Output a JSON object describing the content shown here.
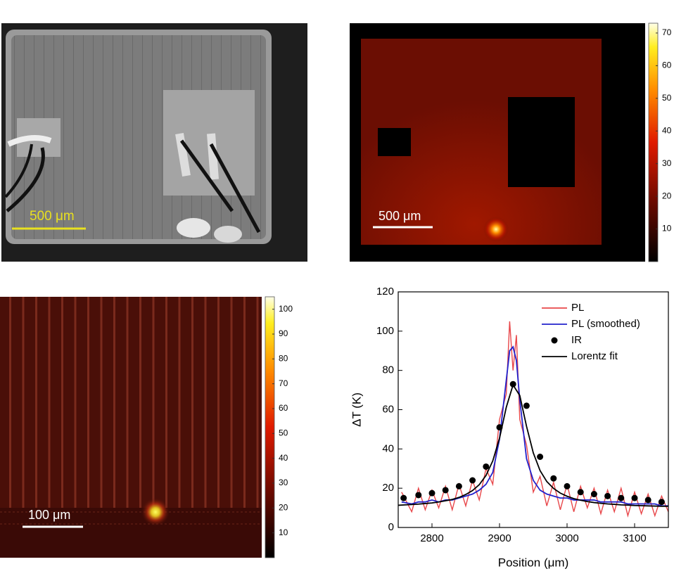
{
  "chart_data": [
    {
      "type": "image",
      "scale_bar": "500 μm"
    },
    {
      "type": "heatmap",
      "scale_bar": "500 μm",
      "clim": [
        0,
        73
      ],
      "cticks": [
        10,
        20,
        30,
        40,
        50,
        60,
        70
      ]
    },
    {
      "type": "heatmap",
      "scale_bar": "100 μm",
      "clim": [
        0,
        105
      ],
      "cticks": [
        10,
        20,
        30,
        40,
        50,
        60,
        70,
        80,
        90,
        100
      ]
    },
    {
      "type": "line",
      "xlabel": "Position (μm)",
      "ylabel": "ΔT (K)",
      "xlim": [
        2750,
        3150
      ],
      "xticks": [
        2800,
        2900,
        3000,
        3100
      ],
      "ylim": [
        0,
        120
      ],
      "yticks": [
        0,
        20,
        40,
        60,
        80,
        100,
        120
      ],
      "legend": "upper right",
      "series": [
        {
          "name": "PL",
          "color": "#e8474a",
          "style": "line",
          "x": [
            2755,
            2770,
            2780,
            2790,
            2800,
            2810,
            2820,
            2830,
            2840,
            2850,
            2860,
            2870,
            2880,
            2890,
            2900,
            2910,
            2915,
            2920,
            2925,
            2930,
            2940,
            2950,
            2960,
            2970,
            2980,
            2990,
            3000,
            3010,
            3020,
            3030,
            3040,
            3050,
            3060,
            3070,
            3080,
            3090,
            3100,
            3110,
            3120,
            3130,
            3140,
            3150
          ],
          "values": [
            18,
            8,
            20,
            9,
            19,
            10,
            21,
            9,
            22,
            11,
            24,
            14,
            30,
            22,
            55,
            68,
            105,
            80,
            98,
            55,
            42,
            18,
            26,
            11,
            23,
            9,
            22,
            8,
            21,
            10,
            20,
            7,
            19,
            8,
            20,
            6,
            18,
            7,
            17,
            6,
            16,
            8
          ]
        },
        {
          "name": "PL (smoothed)",
          "color": "#2222cc",
          "style": "line",
          "x": [
            2755,
            2770,
            2780,
            2790,
            2800,
            2810,
            2820,
            2830,
            2840,
            2850,
            2860,
            2870,
            2880,
            2890,
            2900,
            2910,
            2915,
            2920,
            2925,
            2930,
            2940,
            2950,
            2960,
            2970,
            2980,
            2990,
            3000,
            3010,
            3020,
            3030,
            3040,
            3050,
            3060,
            3070,
            3080,
            3090,
            3100,
            3110,
            3120,
            3130,
            3140,
            3150
          ],
          "values": [
            13,
            12,
            13,
            13,
            14,
            13,
            14,
            14,
            15,
            16,
            17,
            19,
            22,
            28,
            45,
            75,
            90,
            92,
            85,
            65,
            35,
            24,
            19,
            17,
            16,
            15,
            15,
            14,
            14,
            14,
            14,
            13,
            13,
            13,
            13,
            12,
            12,
            12,
            12,
            12,
            11,
            11
          ]
        },
        {
          "name": "IR",
          "color": "#000000",
          "style": "marker",
          "x": [
            2758,
            2780,
            2800,
            2820,
            2840,
            2860,
            2880,
            2900,
            2920,
            2940,
            2960,
            2980,
            3000,
            3020,
            3040,
            3060,
            3080,
            3100,
            3120,
            3140
          ],
          "values": [
            15,
            16.5,
            17.5,
            19,
            21,
            24,
            31,
            51,
            73,
            62,
            36,
            25,
            21,
            18,
            17,
            16,
            15,
            15,
            14,
            13
          ]
        },
        {
          "name": "Lorentz fit",
          "color": "#000000",
          "style": "line",
          "x": [
            2750,
            2760,
            2770,
            2780,
            2790,
            2800,
            2810,
            2820,
            2830,
            2840,
            2850,
            2860,
            2870,
            2880,
            2890,
            2900,
            2910,
            2920,
            2930,
            2940,
            2950,
            2960,
            2970,
            2980,
            2990,
            3000,
            3010,
            3020,
            3030,
            3040,
            3050,
            3060,
            3070,
            3080,
            3090,
            3100,
            3110,
            3120,
            3130,
            3140,
            3150
          ],
          "values": [
            11.3,
            11.5,
            11.7,
            11.9,
            12.2,
            12.5,
            13.0,
            13.6,
            14.3,
            15.3,
            16.8,
            18.8,
            21.8,
            26.5,
            33.9,
            45.5,
            61.2,
            72.6,
            67.2,
            51.5,
            38.0,
            29.0,
            23.4,
            19.9,
            17.5,
            15.9,
            14.7,
            13.9,
            13.2,
            12.7,
            12.3,
            12.0,
            11.8,
            11.5,
            11.4,
            11.2,
            11.1,
            11.0,
            10.9,
            10.8,
            10.8
          ]
        }
      ]
    }
  ]
}
